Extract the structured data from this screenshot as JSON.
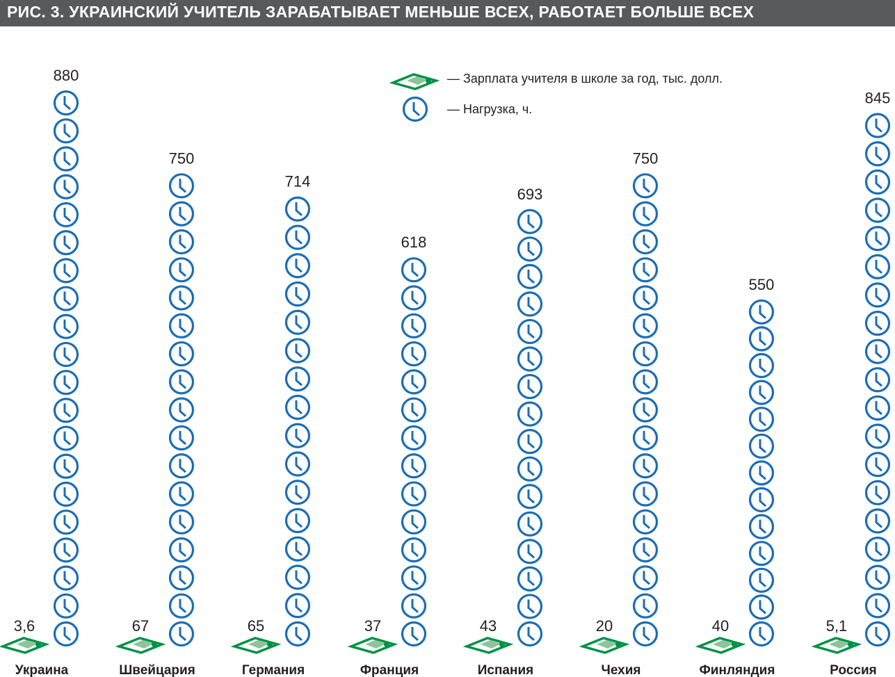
{
  "title": "РИС. 3. УКРАИНСКИЙ УЧИТЕЛЬ ЗАРАБАТЫВАЕТ МЕНЬШЕ ВСЕХ, РАБОТАЕТ БОЛЬШЕ ВСЕХ",
  "colors": {
    "money": "#009245",
    "money_light": "#8cc49c",
    "clock": "#1b6db5",
    "title_bg": "#58595b"
  },
  "chart_data": {
    "type": "bar",
    "title": "РИС. 3. УКРАИНСКИЙ УЧИТЕЛЬ ЗАРАБАТЫВАЕТ МЕНЬШЕ ВСЕХ, РАБОТАЕТ БОЛЬШЕ ВСЕХ",
    "categories": [
      "Украина",
      "Швейцария",
      "Германия",
      "Франция",
      "Испания",
      "Чехия",
      "Финляндия",
      "Россия"
    ],
    "series": [
      {
        "name": "— Зарплата учителя в школе за год, тыс. долл.",
        "icon": "money-stack-icon",
        "values": [
          3.6,
          67,
          65,
          37,
          43,
          20,
          40,
          5.1
        ],
        "labels": [
          "3,6",
          "67",
          "65",
          "37",
          "43",
          "20",
          "40",
          "5,1"
        ]
      },
      {
        "name": "— Нагрузка, ч.",
        "icon": "clock-icon",
        "values": [
          880,
          750,
          714,
          618,
          693,
          750,
          550,
          845
        ],
        "labels": [
          "880",
          "750",
          "714",
          "618",
          "693",
          "750",
          "550",
          "845"
        ]
      }
    ],
    "legend": "top-right",
    "grid": false
  }
}
